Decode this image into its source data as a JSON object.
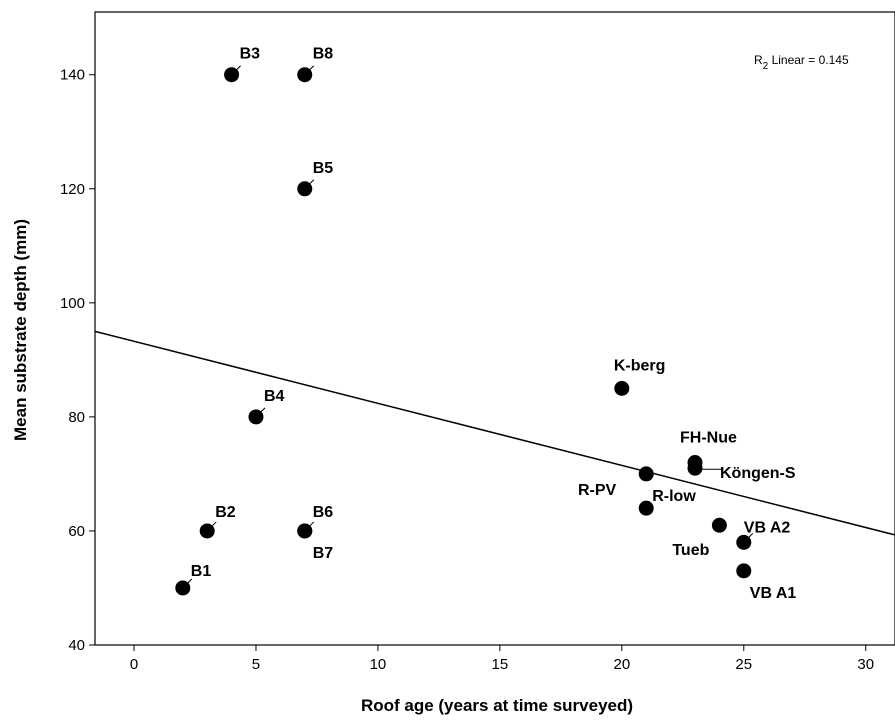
{
  "chart_data": {
    "type": "scatter",
    "xlabel": "Roof age (years at time surveyed)",
    "ylabel": "Mean substrate depth (mm)",
    "xlim": [
      -1.6,
      31.2
    ],
    "ylim": [
      40,
      151
    ],
    "xticks": [
      0,
      5,
      10,
      15,
      20,
      25,
      30
    ],
    "yticks": [
      40,
      60,
      80,
      100,
      120,
      140
    ],
    "grid": false,
    "annotation": {
      "r2_main": "R",
      "r2_sub": "2",
      "r2_rest": " Linear = 0.145"
    },
    "fit_line": {
      "points": [
        [
          -1.6,
          95
        ],
        [
          31.2,
          59.3
        ]
      ]
    },
    "points": [
      {
        "label": "B1",
        "x": 2,
        "y": 50
      },
      {
        "label": "B2",
        "x": 3,
        "y": 60
      },
      {
        "label": "B3",
        "x": 4,
        "y": 140
      },
      {
        "label": "B4",
        "x": 5,
        "y": 80
      },
      {
        "label": "B5",
        "x": 7,
        "y": 120
      },
      {
        "label": "B6",
        "x": 7,
        "y": 60
      },
      {
        "label": "B7",
        "x": 7,
        "y": 60
      },
      {
        "label": "B8",
        "x": 7,
        "y": 140
      },
      {
        "label": "K-berg",
        "x": 20,
        "y": 85
      },
      {
        "label": "FH-Nue",
        "x": 23,
        "y": 72
      },
      {
        "label": "Köngen-S",
        "x": 23,
        "y": 71
      },
      {
        "label": "R-PV",
        "x": 21,
        "y": 70
      },
      {
        "label": "R-low",
        "x": 21,
        "y": 64
      },
      {
        "label": "VB A2",
        "x": 25,
        "y": 58
      },
      {
        "label": "Tueb",
        "x": 24,
        "y": 61
      },
      {
        "label": "VB A1",
        "x": 25,
        "y": 53
      }
    ]
  }
}
